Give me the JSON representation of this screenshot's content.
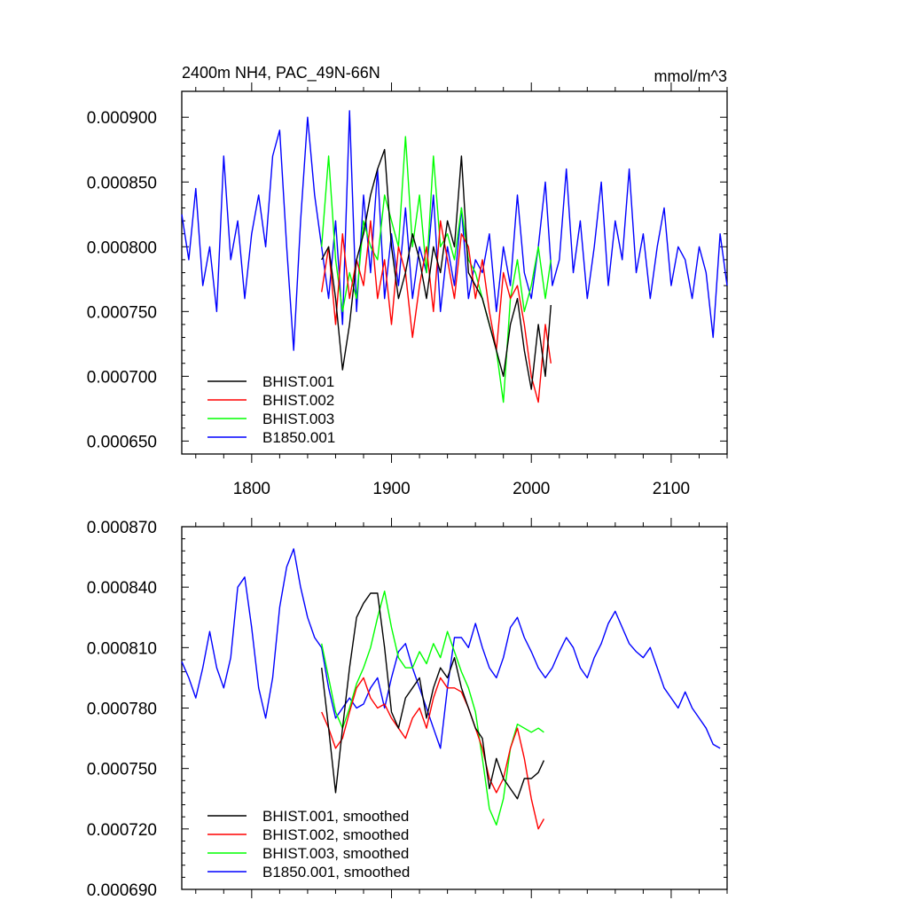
{
  "chart_data": [
    {
      "type": "line",
      "title": "2400m NH4, PAC_49N-66N",
      "units": "mmol/m^3",
      "xlabel": "",
      "ylabel": "",
      "xlim": [
        1750,
        2140
      ],
      "ylim": [
        0.00064,
        0.00092
      ],
      "xticks": [
        1800,
        1900,
        2000,
        2100
      ],
      "xtick_labels": [
        "1800",
        "1900",
        "2000",
        "2100"
      ],
      "yticks": [
        0.00065,
        0.0007,
        0.00075,
        0.0008,
        0.00085,
        0.0009
      ],
      "ytick_labels": [
        "0.000650",
        "0.000700",
        "0.000750",
        "0.000800",
        "0.000850",
        "0.000900"
      ],
      "legend_position": "bottom-left",
      "series": [
        {
          "name": "BHIST.001",
          "color": "#000000",
          "x": [
            1850,
            1855,
            1860,
            1865,
            1870,
            1875,
            1880,
            1885,
            1890,
            1895,
            1900,
            1905,
            1910,
            1915,
            1920,
            1925,
            1930,
            1935,
            1940,
            1945,
            1950,
            1955,
            1960,
            1965,
            1970,
            1975,
            1980,
            1985,
            1990,
            1995,
            2000,
            2005,
            2010,
            2014
          ],
          "values": [
            0.00079,
            0.0008,
            0.00076,
            0.000705,
            0.00074,
            0.00079,
            0.00081,
            0.00084,
            0.00086,
            0.000875,
            0.0008,
            0.00076,
            0.00078,
            0.00081,
            0.00079,
            0.00076,
            0.0008,
            0.00078,
            0.00082,
            0.0008,
            0.00087,
            0.00078,
            0.00077,
            0.00076,
            0.00074,
            0.00072,
            0.0007,
            0.00074,
            0.00076,
            0.00072,
            0.00069,
            0.00074,
            0.0007,
            0.000755
          ]
        },
        {
          "name": "BHIST.002",
          "color": "#ff0000",
          "x": [
            1850,
            1855,
            1860,
            1865,
            1870,
            1875,
            1880,
            1885,
            1890,
            1895,
            1900,
            1905,
            1910,
            1915,
            1920,
            1925,
            1930,
            1935,
            1940,
            1945,
            1950,
            1955,
            1960,
            1965,
            1970,
            1975,
            1980,
            1985,
            1990,
            1995,
            2000,
            2005,
            2010,
            2014
          ],
          "values": [
            0.000765,
            0.0008,
            0.00074,
            0.00081,
            0.00076,
            0.00079,
            0.00077,
            0.00082,
            0.00076,
            0.00079,
            0.00074,
            0.0008,
            0.00078,
            0.00073,
            0.00077,
            0.0008,
            0.00075,
            0.00082,
            0.00079,
            0.00076,
            0.00081,
            0.0008,
            0.00076,
            0.00079,
            0.00075,
            0.00072,
            0.00078,
            0.00076,
            0.00077,
            0.00074,
            0.0007,
            0.00068,
            0.00074,
            0.00071
          ]
        },
        {
          "name": "BHIST.003",
          "color": "#00ff00",
          "x": [
            1850,
            1855,
            1860,
            1865,
            1870,
            1875,
            1880,
            1885,
            1890,
            1895,
            1900,
            1905,
            1910,
            1915,
            1920,
            1925,
            1930,
            1935,
            1940,
            1945,
            1950,
            1955,
            1960,
            1965,
            1970,
            1975,
            1980,
            1985,
            1990,
            1995,
            2000,
            2005,
            2010,
            2014
          ],
          "values": [
            0.0008,
            0.00087,
            0.00079,
            0.00075,
            0.00078,
            0.00076,
            0.00082,
            0.0008,
            0.00079,
            0.00084,
            0.00082,
            0.0008,
            0.000885,
            0.0008,
            0.00084,
            0.00078,
            0.00087,
            0.0008,
            0.00081,
            0.00079,
            0.00083,
            0.00079,
            0.00078,
            0.00076,
            0.00074,
            0.00072,
            0.00068,
            0.00076,
            0.00079,
            0.00075,
            0.00077,
            0.0008,
            0.00076,
            0.00079
          ]
        },
        {
          "name": "B1850.001",
          "color": "#0000ff",
          "x": [
            1750,
            1755,
            1760,
            1765,
            1770,
            1775,
            1780,
            1785,
            1790,
            1795,
            1800,
            1805,
            1810,
            1815,
            1820,
            1825,
            1830,
            1835,
            1840,
            1845,
            1850,
            1855,
            1860,
            1865,
            1870,
            1875,
            1880,
            1885,
            1890,
            1895,
            1900,
            1905,
            1910,
            1915,
            1920,
            1925,
            1930,
            1935,
            1940,
            1945,
            1950,
            1955,
            1960,
            1965,
            1970,
            1975,
            1980,
            1985,
            1990,
            1995,
            2000,
            2005,
            2010,
            2015,
            2020,
            2025,
            2030,
            2035,
            2040,
            2045,
            2050,
            2055,
            2060,
            2065,
            2070,
            2075,
            2080,
            2085,
            2090,
            2095,
            2100,
            2105,
            2110,
            2115,
            2120,
            2125,
            2130,
            2135,
            2140
          ],
          "values": [
            0.000825,
            0.00079,
            0.000845,
            0.00077,
            0.0008,
            0.00075,
            0.00087,
            0.00079,
            0.00082,
            0.00076,
            0.00081,
            0.00084,
            0.0008,
            0.00087,
            0.00089,
            0.0008,
            0.00072,
            0.00082,
            0.0009,
            0.00084,
            0.0008,
            0.00076,
            0.00082,
            0.00074,
            0.000905,
            0.00075,
            0.00084,
            0.00078,
            0.00086,
            0.00076,
            0.00081,
            0.00077,
            0.00083,
            0.00076,
            0.0008,
            0.00078,
            0.00084,
            0.00075,
            0.0008,
            0.00077,
            0.00083,
            0.00076,
            0.00079,
            0.00078,
            0.00081,
            0.00075,
            0.0008,
            0.00077,
            0.00084,
            0.00078,
            0.00076,
            0.0008,
            0.00085,
            0.00077,
            0.00079,
            0.00086,
            0.00078,
            0.00082,
            0.00076,
            0.0008,
            0.00085,
            0.00077,
            0.00082,
            0.00079,
            0.00086,
            0.00078,
            0.00081,
            0.00076,
            0.0008,
            0.00083,
            0.00077,
            0.0008,
            0.00079,
            0.00076,
            0.0008,
            0.00078,
            0.00073,
            0.00081,
            0.00077
          ]
        }
      ]
    },
    {
      "type": "line",
      "title": "",
      "xlabel": "",
      "ylabel": "",
      "xlim": [
        1750,
        2140
      ],
      "ylim": [
        0.00069,
        0.00087
      ],
      "xticks": [
        1800,
        1900,
        2000,
        2100
      ],
      "xtick_labels": [],
      "yticks": [
        0.00069,
        0.00072,
        0.00075,
        0.00078,
        0.00081,
        0.00084,
        0.00087
      ],
      "ytick_labels": [
        "0.000690",
        "0.000720",
        "0.000750",
        "0.000780",
        "0.000810",
        "0.000840",
        "0.000870"
      ],
      "legend_position": "bottom-left",
      "series": [
        {
          "name": "BHIST.001, smoothed",
          "color": "#000000",
          "x": [
            1850,
            1855,
            1860,
            1865,
            1870,
            1875,
            1880,
            1885,
            1890,
            1895,
            1900,
            1905,
            1910,
            1915,
            1920,
            1925,
            1930,
            1935,
            1940,
            1945,
            1950,
            1955,
            1960,
            1965,
            1970,
            1975,
            1980,
            1985,
            1990,
            1995,
            2000,
            2005,
            2009
          ],
          "values": [
            0.0008,
            0.00077,
            0.000738,
            0.00077,
            0.0008,
            0.000825,
            0.000832,
            0.000837,
            0.000837,
            0.00081,
            0.000778,
            0.00077,
            0.000785,
            0.00079,
            0.000795,
            0.000775,
            0.00079,
            0.0008,
            0.000795,
            0.000805,
            0.00079,
            0.00078,
            0.00077,
            0.000765,
            0.00074,
            0.000755,
            0.000745,
            0.00074,
            0.000735,
            0.000745,
            0.000745,
            0.000748,
            0.000754
          ]
        },
        {
          "name": "BHIST.002, smoothed",
          "color": "#ff0000",
          "x": [
            1850,
            1855,
            1860,
            1865,
            1870,
            1875,
            1880,
            1885,
            1890,
            1895,
            1900,
            1905,
            1910,
            1915,
            1920,
            1925,
            1930,
            1935,
            1940,
            1945,
            1950,
            1955,
            1960,
            1965,
            1970,
            1975,
            1980,
            1985,
            1990,
            1995,
            2000,
            2005,
            2009
          ],
          "values": [
            0.000778,
            0.00077,
            0.00076,
            0.000765,
            0.000778,
            0.00079,
            0.000795,
            0.000785,
            0.00078,
            0.000782,
            0.000775,
            0.00077,
            0.000765,
            0.000775,
            0.00078,
            0.00077,
            0.000785,
            0.000795,
            0.00079,
            0.00079,
            0.000788,
            0.00078,
            0.00077,
            0.00076,
            0.000745,
            0.000738,
            0.000745,
            0.00076,
            0.00077,
            0.000755,
            0.000735,
            0.00072,
            0.000725
          ]
        },
        {
          "name": "BHIST.003, smoothed",
          "color": "#00ff00",
          "x": [
            1850,
            1855,
            1860,
            1865,
            1870,
            1875,
            1880,
            1885,
            1890,
            1895,
            1900,
            1905,
            1910,
            1915,
            1920,
            1925,
            1930,
            1935,
            1940,
            1945,
            1950,
            1955,
            1960,
            1965,
            1970,
            1975,
            1980,
            1985,
            1990,
            1995,
            2000,
            2005,
            2009
          ],
          "values": [
            0.000812,
            0.000795,
            0.000778,
            0.00077,
            0.00078,
            0.000792,
            0.0008,
            0.00081,
            0.000825,
            0.000838,
            0.00082,
            0.000805,
            0.0008,
            0.0008,
            0.000808,
            0.000802,
            0.000812,
            0.000805,
            0.000818,
            0.000808,
            0.000798,
            0.00079,
            0.000778,
            0.000755,
            0.00073,
            0.000722,
            0.000735,
            0.00076,
            0.000772,
            0.00077,
            0.000768,
            0.00077,
            0.000768
          ]
        },
        {
          "name": "B1850.001, smoothed",
          "color": "#0000ff",
          "x": [
            1750,
            1755,
            1760,
            1765,
            1770,
            1775,
            1780,
            1785,
            1790,
            1795,
            1800,
            1805,
            1810,
            1815,
            1820,
            1825,
            1830,
            1835,
            1840,
            1845,
            1850,
            1855,
            1860,
            1865,
            1870,
            1875,
            1880,
            1885,
            1890,
            1895,
            1900,
            1905,
            1910,
            1915,
            1920,
            1925,
            1930,
            1935,
            1940,
            1945,
            1950,
            1955,
            1960,
            1965,
            1970,
            1975,
            1980,
            1985,
            1990,
            1995,
            2000,
            2005,
            2010,
            2015,
            2020,
            2025,
            2030,
            2035,
            2040,
            2045,
            2050,
            2055,
            2060,
            2065,
            2070,
            2075,
            2080,
            2085,
            2090,
            2095,
            2100,
            2105,
            2110,
            2115,
            2120,
            2125,
            2130,
            2135
          ],
          "values": [
            0.000803,
            0.000795,
            0.000785,
            0.0008,
            0.000818,
            0.0008,
            0.00079,
            0.000805,
            0.00084,
            0.000845,
            0.00082,
            0.00079,
            0.000775,
            0.000795,
            0.00083,
            0.00085,
            0.000859,
            0.00084,
            0.000825,
            0.000815,
            0.00081,
            0.00079,
            0.000775,
            0.00078,
            0.000785,
            0.00078,
            0.000782,
            0.00079,
            0.000795,
            0.00078,
            0.000795,
            0.000808,
            0.000812,
            0.0008,
            0.00079,
            0.00078,
            0.00077,
            0.00076,
            0.00079,
            0.000815,
            0.000815,
            0.00081,
            0.000822,
            0.00081,
            0.0008,
            0.000795,
            0.000805,
            0.00082,
            0.000825,
            0.000815,
            0.000808,
            0.0008,
            0.000795,
            0.0008,
            0.000808,
            0.000815,
            0.00081,
            0.0008,
            0.000795,
            0.000805,
            0.000812,
            0.000822,
            0.000828,
            0.00082,
            0.000812,
            0.000808,
            0.000805,
            0.00081,
            0.0008,
            0.00079,
            0.000785,
            0.00078,
            0.000788,
            0.00078,
            0.000775,
            0.00077,
            0.000762,
            0.00076
          ]
        }
      ]
    }
  ]
}
